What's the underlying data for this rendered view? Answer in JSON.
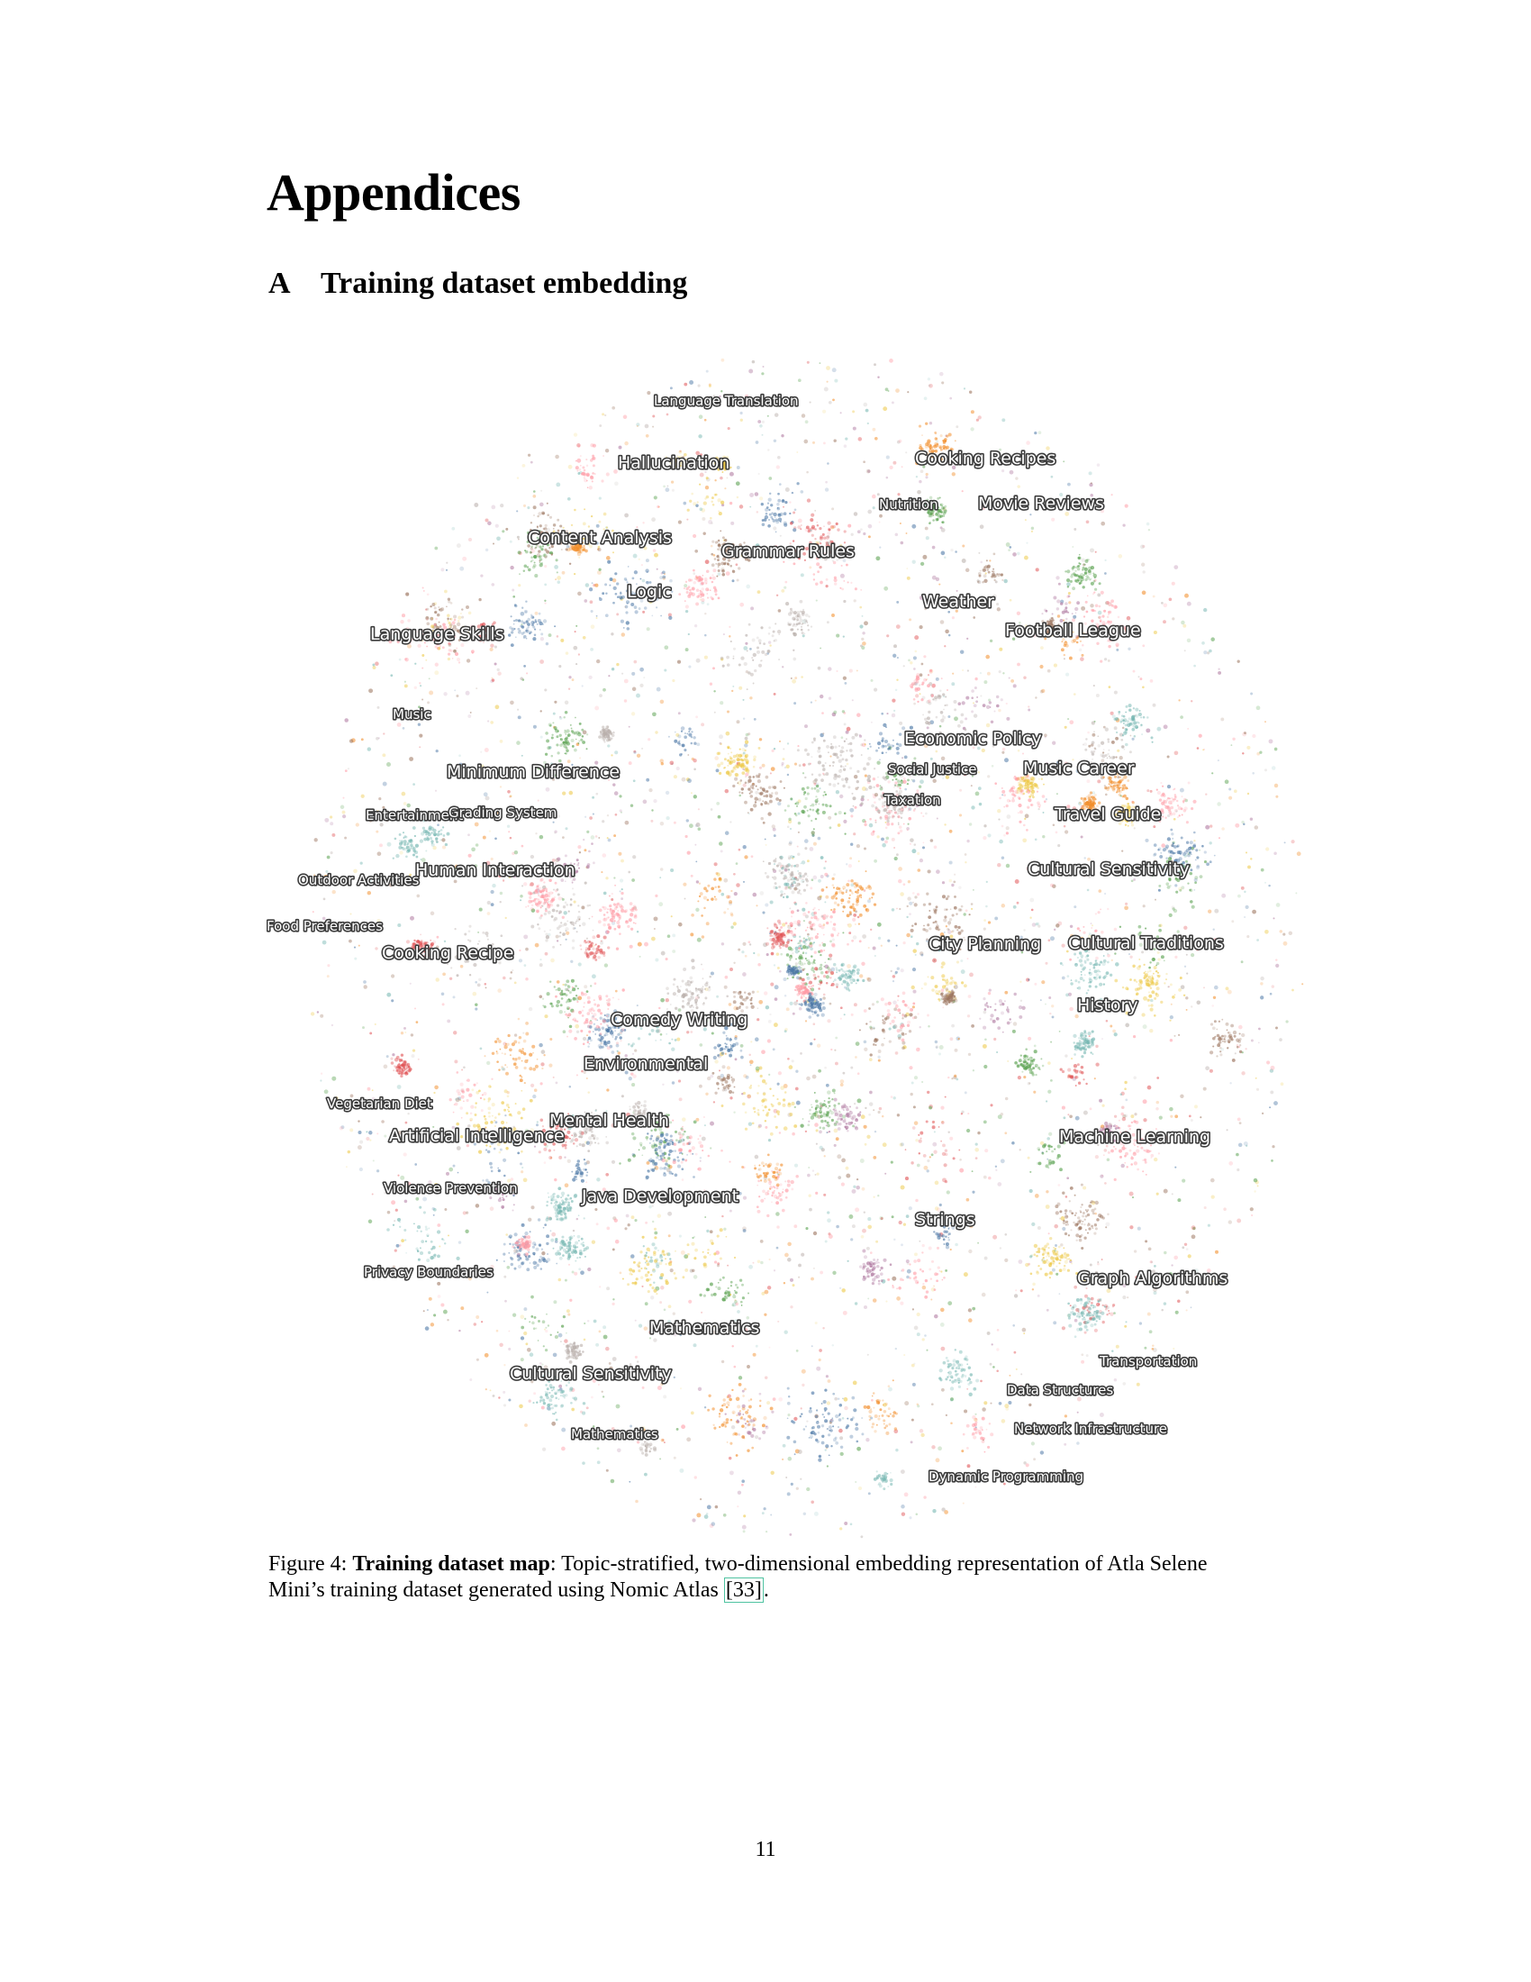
{
  "heading": "Appendices",
  "section": {
    "number": "A",
    "title": "Training dataset embedding"
  },
  "figure": {
    "topic_labels": [
      {
        "text": "Language Translation",
        "size": "small"
      },
      {
        "text": "Hallucination",
        "size": "large"
      },
      {
        "text": "Cooking Recipes",
        "size": "large"
      },
      {
        "text": "Nutrition",
        "size": "small"
      },
      {
        "text": "Movie Reviews",
        "size": "large"
      },
      {
        "text": "Content Analysis",
        "size": "large"
      },
      {
        "text": "Grammar Rules",
        "size": "large"
      },
      {
        "text": "Logic",
        "size": "large"
      },
      {
        "text": "Weather",
        "size": "large"
      },
      {
        "text": "Language Skills",
        "size": "large"
      },
      {
        "text": "Football League",
        "size": "large"
      },
      {
        "text": "Music",
        "size": "small"
      },
      {
        "text": "Economic Policy",
        "size": "large"
      },
      {
        "text": "Social Justice",
        "size": "small"
      },
      {
        "text": "Music Career",
        "size": "large"
      },
      {
        "text": "Minimum Difference",
        "size": "large"
      },
      {
        "text": "Taxation",
        "size": "small"
      },
      {
        "text": "Entertainment",
        "size": "small"
      },
      {
        "text": "Grading System",
        "size": "small"
      },
      {
        "text": "Travel Guide",
        "size": "large"
      },
      {
        "text": "Human Interaction",
        "size": "large"
      },
      {
        "text": "Cultural Sensitivity",
        "size": "large"
      },
      {
        "text": "Outdoor Activities",
        "size": "small"
      },
      {
        "text": "Food Preferences",
        "size": "small"
      },
      {
        "text": "City Planning",
        "size": "large"
      },
      {
        "text": "Cultural Traditions",
        "size": "large"
      },
      {
        "text": "Cooking Recipe",
        "size": "large"
      },
      {
        "text": "History",
        "size": "large"
      },
      {
        "text": "Comedy Writing",
        "size": "large"
      },
      {
        "text": "Vegetarian Diet",
        "size": "small"
      },
      {
        "text": "Environmental",
        "size": "large"
      },
      {
        "text": "Artificial Intelligence",
        "size": "large"
      },
      {
        "text": "Mental Health",
        "size": "large"
      },
      {
        "text": "Machine Learning",
        "size": "large"
      },
      {
        "text": "Violence Prevention",
        "size": "small"
      },
      {
        "text": "Java Development",
        "size": "large"
      },
      {
        "text": "Strings",
        "size": "large"
      },
      {
        "text": "Privacy Boundaries",
        "size": "small"
      },
      {
        "text": "Graph Algorithms",
        "size": "large"
      },
      {
        "text": "Mathematics",
        "size": "large"
      },
      {
        "text": "Transportation",
        "size": "small"
      },
      {
        "text": "Cultural Sensitivity",
        "size": "large"
      },
      {
        "text": "Data Structures",
        "size": "small"
      },
      {
        "text": "Network Infrastructure",
        "size": "small"
      },
      {
        "text": "Mathematics",
        "size": "small"
      },
      {
        "text": "Dynamic Programming",
        "size": "small"
      }
    ],
    "point_colors": [
      "#4e79a7",
      "#f28e2b",
      "#e15759",
      "#76b7b2",
      "#59a14f",
      "#edc948",
      "#b07aa1",
      "#ff9da7",
      "#9c755f",
      "#bab0ac"
    ]
  },
  "caption": {
    "prefix": "Figure 4: ",
    "bold": "Training dataset map",
    "text_1": ": Topic-stratified, two-dimensional embedding representation of Atla Selene Mini’s training dataset generated using Nomic Atlas ",
    "citation": "[33]",
    "text_2": "."
  },
  "page_number": "11"
}
